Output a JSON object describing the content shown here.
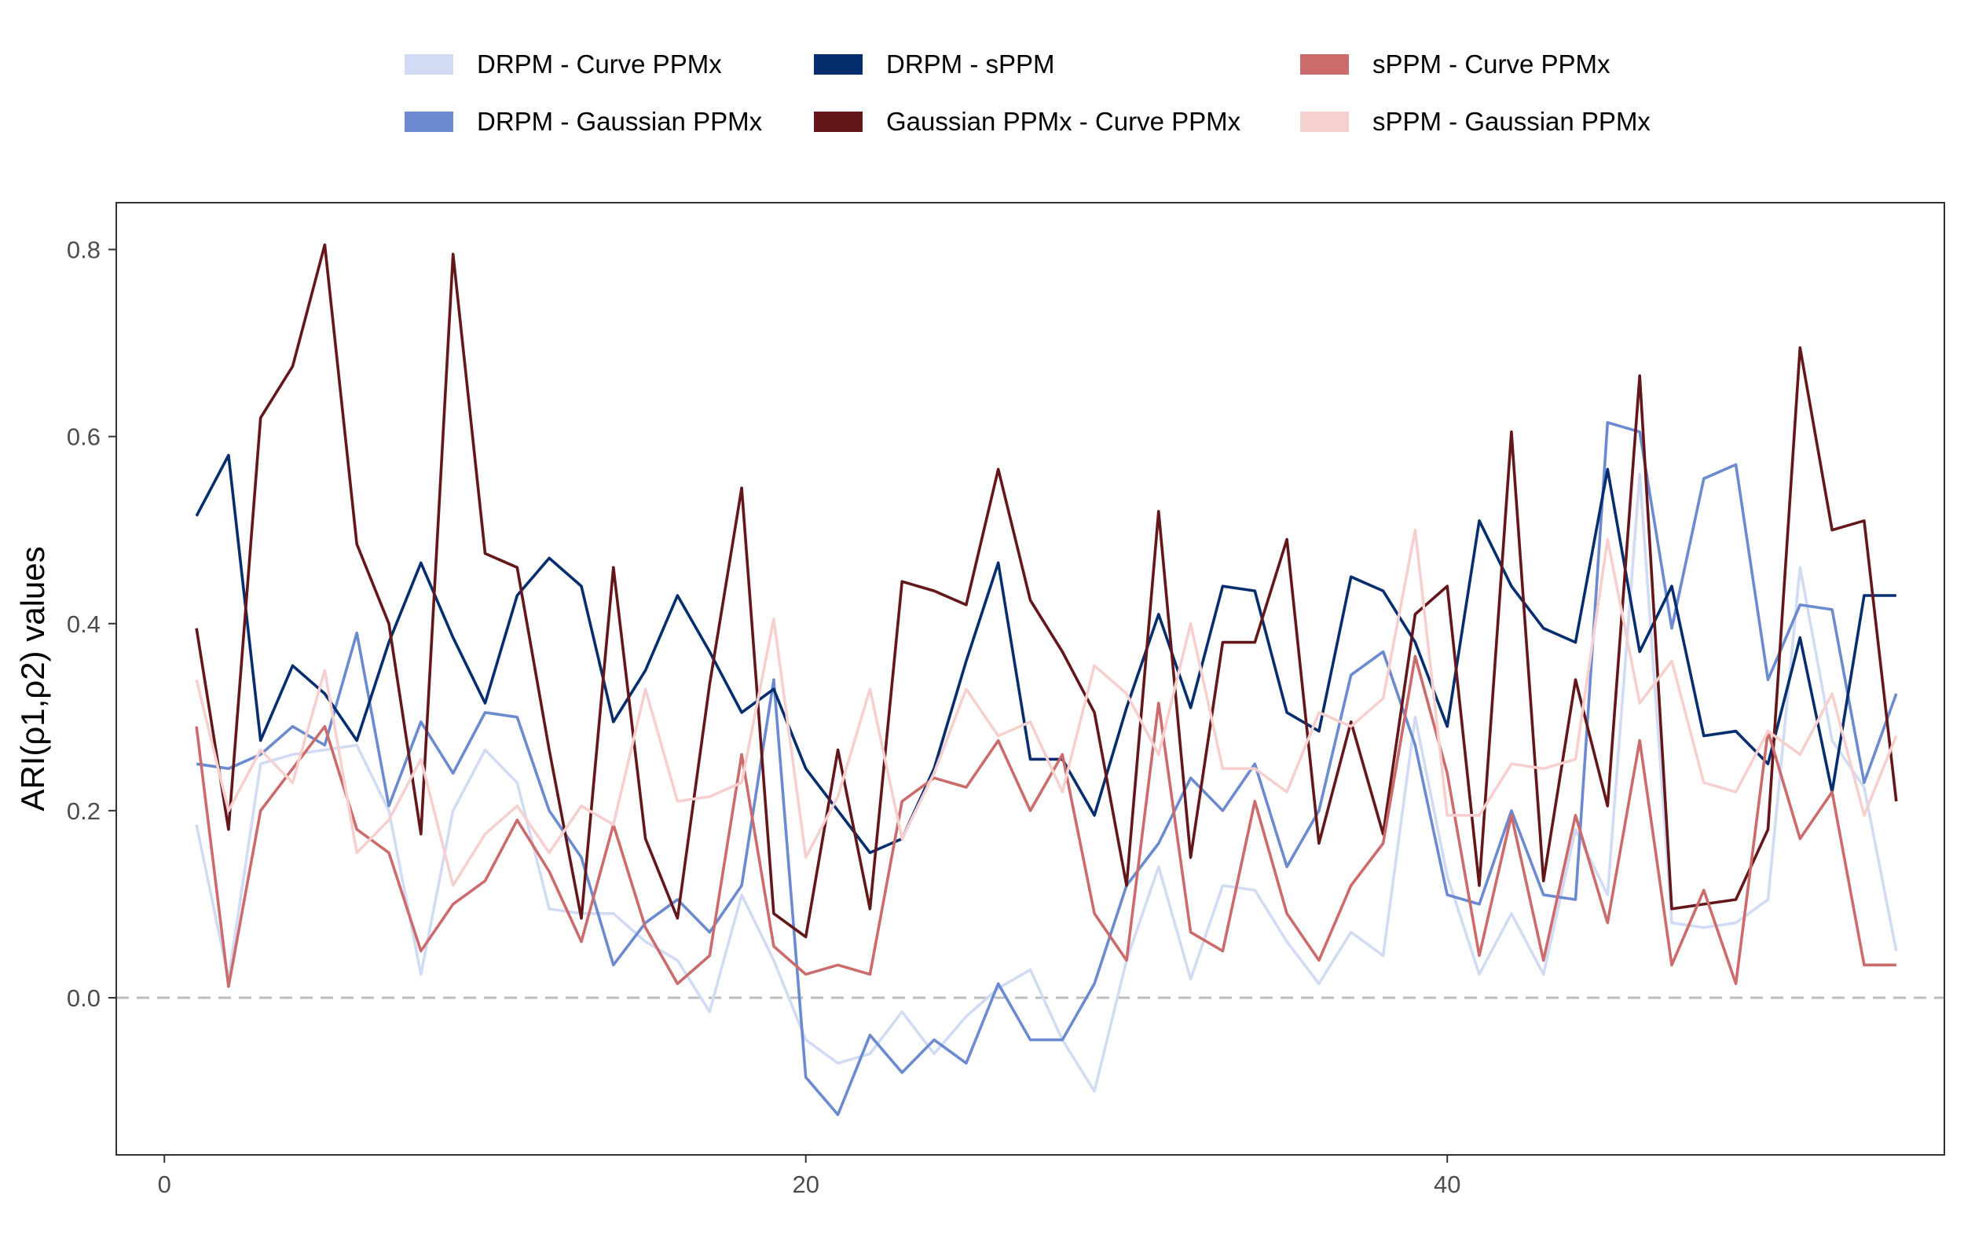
{
  "chart_data": {
    "type": "line",
    "xlabel": "",
    "ylabel": "ARI(ρ1,ρ2) values",
    "xlim": [
      -1.5,
      55.5
    ],
    "ylim": [
      -0.168,
      0.85
    ],
    "xticks": [
      0,
      20,
      40
    ],
    "yticks": [
      0.0,
      0.2,
      0.4,
      0.6,
      0.8
    ],
    "xtick_labels": [
      "0",
      "20",
      "40"
    ],
    "ytick_labels": [
      "0.0",
      "0.2",
      "0.4",
      "0.6",
      "0.8"
    ],
    "reference_line": {
      "y": 0.0,
      "style": "dashed",
      "color": "#bdbdbd"
    },
    "grid": false,
    "legend_position": "top",
    "x": [
      1,
      2,
      3,
      4,
      5,
      6,
      7,
      8,
      9,
      10,
      11,
      12,
      13,
      14,
      15,
      16,
      17,
      18,
      19,
      20,
      21,
      22,
      23,
      24,
      25,
      26,
      27,
      28,
      29,
      30,
      31,
      32,
      33,
      34,
      35,
      36,
      37,
      38,
      39,
      40,
      41,
      42,
      43,
      44,
      45,
      46,
      47,
      48,
      49,
      50,
      51,
      52,
      53,
      54
    ],
    "series": [
      {
        "name": "DRPM - Curve PPMx",
        "color": "#d2dbf4",
        "values": [
          0.185,
          0.02,
          0.25,
          0.26,
          0.265,
          0.27,
          0.2,
          0.025,
          0.2,
          0.265,
          0.23,
          0.095,
          0.09,
          0.09,
          0.06,
          0.04,
          -0.015,
          0.11,
          0.04,
          -0.045,
          -0.07,
          -0.06,
          -0.015,
          -0.06,
          -0.02,
          0.01,
          0.03,
          -0.045,
          -0.1,
          0.04,
          0.14,
          0.02,
          0.12,
          0.115,
          0.06,
          0.015,
          0.07,
          0.045,
          0.3,
          0.13,
          0.025,
          0.09,
          0.025,
          0.18,
          0.11,
          0.56,
          0.08,
          0.075,
          0.08,
          0.105,
          0.46,
          0.275,
          0.225,
          0.05
        ]
      },
      {
        "name": "DRPM - Gaussian PPMx",
        "color": "#6b8ad0",
        "values": [
          0.25,
          0.245,
          0.26,
          0.29,
          0.27,
          0.39,
          0.205,
          0.295,
          0.24,
          0.305,
          0.3,
          0.2,
          0.15,
          0.035,
          0.08,
          0.105,
          0.07,
          0.12,
          0.34,
          -0.085,
          -0.125,
          -0.04,
          -0.08,
          -0.045,
          -0.07,
          0.015,
          -0.045,
          -0.045,
          0.015,
          0.12,
          0.165,
          0.235,
          0.2,
          0.25,
          0.14,
          0.2,
          0.345,
          0.37,
          0.27,
          0.11,
          0.1,
          0.2,
          0.11,
          0.105,
          0.615,
          0.605,
          0.395,
          0.555,
          0.57,
          0.34,
          0.42,
          0.415,
          0.23,
          0.325
        ]
      },
      {
        "name": "DRPM - sPPM",
        "color": "#062e6f",
        "values": [
          0.515,
          0.58,
          0.275,
          0.355,
          0.325,
          0.275,
          0.38,
          0.465,
          0.385,
          0.315,
          0.43,
          0.47,
          0.44,
          0.295,
          0.35,
          0.43,
          0.37,
          0.305,
          0.33,
          0.245,
          0.2,
          0.155,
          0.17,
          0.245,
          0.36,
          0.465,
          0.255,
          0.255,
          0.195,
          0.31,
          0.41,
          0.31,
          0.44,
          0.435,
          0.305,
          0.285,
          0.45,
          0.435,
          0.38,
          0.29,
          0.51,
          0.44,
          0.395,
          0.38,
          0.565,
          0.37,
          0.44,
          0.28,
          0.285,
          0.25,
          0.385,
          0.22,
          0.43,
          0.43
        ]
      },
      {
        "name": "Gaussian PPMx - Curve PPMx",
        "color": "#64171a",
        "values": [
          0.395,
          0.18,
          0.62,
          0.675,
          0.805,
          0.485,
          0.4,
          0.175,
          0.795,
          0.475,
          0.46,
          0.265,
          0.085,
          0.46,
          0.17,
          0.085,
          0.335,
          0.545,
          0.09,
          0.065,
          0.265,
          0.095,
          0.445,
          0.435,
          0.42,
          0.565,
          0.425,
          0.37,
          0.305,
          0.12,
          0.52,
          0.15,
          0.38,
          0.38,
          0.49,
          0.165,
          0.295,
          0.175,
          0.41,
          0.44,
          0.12,
          0.605,
          0.125,
          0.34,
          0.205,
          0.665,
          0.095,
          0.1,
          0.105,
          0.18,
          0.695,
          0.5,
          0.51,
          0.21
        ]
      },
      {
        "name": "sPPM - Curve PPMx",
        "color": "#cb6b6b",
        "values": [
          0.29,
          0.012,
          0.2,
          0.245,
          0.29,
          0.18,
          0.155,
          0.05,
          0.1,
          0.125,
          0.19,
          0.135,
          0.06,
          0.185,
          0.075,
          0.015,
          0.045,
          0.26,
          0.055,
          0.025,
          0.035,
          0.025,
          0.21,
          0.235,
          0.225,
          0.275,
          0.2,
          0.26,
          0.09,
          0.04,
          0.315,
          0.07,
          0.05,
          0.21,
          0.09,
          0.04,
          0.12,
          0.165,
          0.365,
          0.24,
          0.045,
          0.195,
          0.04,
          0.195,
          0.08,
          0.275,
          0.035,
          0.115,
          0.015,
          0.285,
          0.17,
          0.22,
          0.035,
          0.035
        ]
      },
      {
        "name": "sPPM - Gaussian PPMx",
        "color": "#f6d0cf",
        "values": [
          0.34,
          0.2,
          0.265,
          0.23,
          0.35,
          0.155,
          0.19,
          0.255,
          0.12,
          0.175,
          0.205,
          0.155,
          0.205,
          0.185,
          0.33,
          0.21,
          0.215,
          0.23,
          0.405,
          0.15,
          0.215,
          0.33,
          0.17,
          0.24,
          0.33,
          0.28,
          0.295,
          0.22,
          0.355,
          0.325,
          0.26,
          0.4,
          0.245,
          0.245,
          0.22,
          0.305,
          0.29,
          0.32,
          0.5,
          0.195,
          0.195,
          0.25,
          0.245,
          0.255,
          0.49,
          0.315,
          0.36,
          0.23,
          0.22,
          0.285,
          0.26,
          0.325,
          0.195,
          0.28
        ]
      }
    ]
  }
}
